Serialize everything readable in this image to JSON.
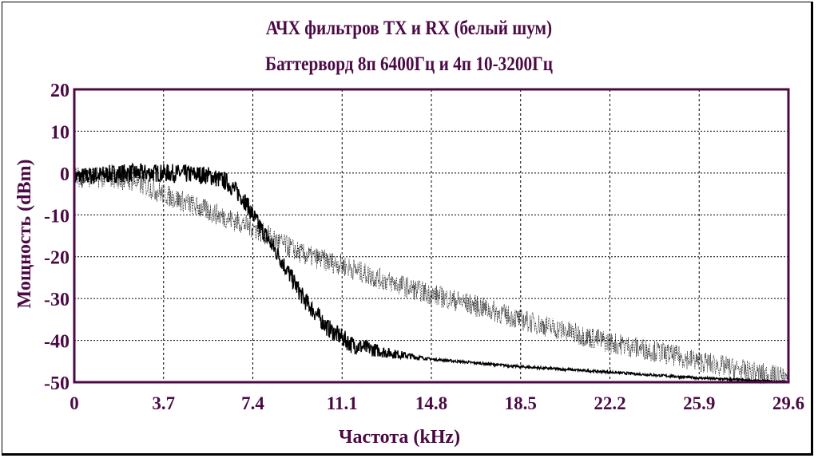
{
  "chart_data": {
    "type": "line",
    "title": "АЧХ фильтров TX и RX (белый шум)",
    "subtitle": "Баттерворд 8п 6400Гц и 4п 10-3200Гц",
    "xlabel": "Частота (kHz)",
    "ylabel": "Мощность (dBm)",
    "xlim": [
      0,
      29.6
    ],
    "ylim": [
      -50,
      20
    ],
    "x_ticks": [
      "0",
      "3.7",
      "7.4",
      "11.1",
      "14.8",
      "18.5",
      "22.2",
      "25.9",
      "29.6"
    ],
    "y_ticks": [
      "20",
      "10",
      "0",
      "-10",
      "-20",
      "-30",
      "-40",
      "-50"
    ],
    "grid": true,
    "series": [
      {
        "name": "Butterworth 8p 6400Hz",
        "style": "solid",
        "x": [
          0,
          2,
          4,
          5.5,
          6.3,
          7,
          7.6,
          8.5,
          9.5,
          10.5,
          11.5,
          13,
          14.8,
          18.5,
          22.2,
          25.9,
          29.6
        ],
        "y": [
          -1,
          0,
          0,
          -0.5,
          -2,
          -6,
          -12,
          -20,
          -30,
          -37,
          -41,
          -43,
          -44.5,
          -46.3,
          -47.6,
          -49,
          -50
        ]
      },
      {
        "name": "Butterworth 4p 10-3200Hz",
        "style": "dotted-noisy",
        "x": [
          0,
          1.5,
          2.5,
          3.7,
          5.5,
          7.4,
          8.5,
          9.5,
          11.1,
          12.5,
          14.8,
          16.5,
          18.5,
          20.5,
          22.2,
          24,
          25.9,
          28,
          29.6
        ],
        "y": [
          -1,
          -1,
          -2,
          -5,
          -9,
          -13,
          -16.5,
          -19.5,
          -22,
          -25,
          -29,
          -31.5,
          -35,
          -38,
          -40.5,
          -42.5,
          -45,
          -47.5,
          -49
        ]
      }
    ],
    "colors": {
      "text": "#4b0a45",
      "axes": "#4b0a45",
      "grid": "#000000",
      "data": "#000000"
    }
  }
}
